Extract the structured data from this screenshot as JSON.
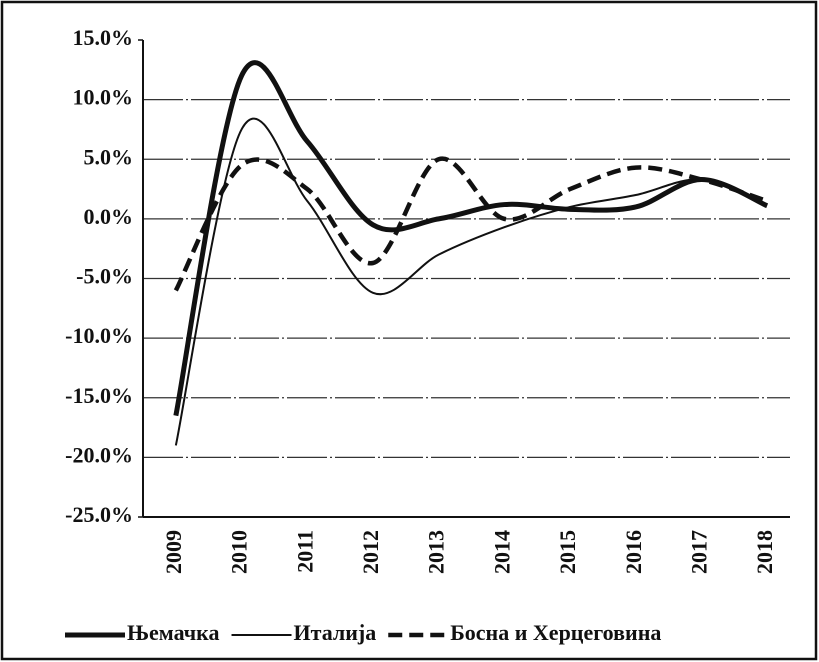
{
  "chart_data": {
    "type": "line",
    "categories": [
      "2009",
      "2010",
      "2011",
      "2012",
      "2013",
      "2014",
      "2015",
      "2016",
      "2017",
      "2018"
    ],
    "series": [
      {
        "name": "Њемачка",
        "color": "#111111",
        "style": "thick",
        "values": [
          -16.5,
          12,
          6.5,
          -0.5,
          0,
          1.2,
          0.8,
          1,
          3.3,
          1.1
        ]
      },
      {
        "name": "Италија",
        "color": "#111111",
        "style": "thin",
        "values": [
          -19,
          7.5,
          1.5,
          -6.2,
          -3,
          -0.7,
          1,
          2,
          3.3,
          1.2
        ]
      },
      {
        "name": "Босна и Херцеговина",
        "color": "#111111",
        "style": "dashed",
        "values": [
          -6,
          4.5,
          2.5,
          -3.7,
          5,
          0,
          2.5,
          4.3,
          3.3,
          1.5
        ]
      }
    ],
    "ylim": [
      -25,
      15
    ],
    "yticks": [
      {
        "value": -25,
        "label": "-25.0%"
      },
      {
        "value": -20,
        "label": "-20.0%"
      },
      {
        "value": -15,
        "label": "-15.0%"
      },
      {
        "value": -10,
        "label": "-10.0%"
      },
      {
        "value": -5,
        "label": "-5.0%"
      },
      {
        "value": 0,
        "label": "0.0%"
      },
      {
        "value": 5,
        "label": "5.0%"
      },
      {
        "value": 10,
        "label": "10.0%"
      },
      {
        "value": 15,
        "label": "15.0%"
      }
    ],
    "grid": true,
    "legend": "bottom"
  }
}
